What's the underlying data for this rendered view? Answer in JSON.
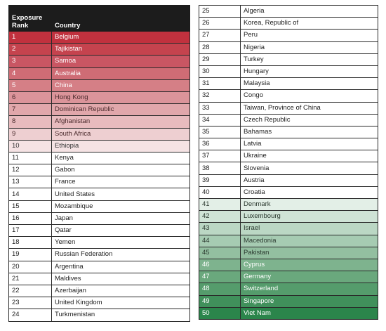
{
  "table_header": {
    "rank": "Exposure\nRank",
    "country": "Country"
  },
  "left_rows": [
    {
      "rank": "1",
      "country": "Belgium",
      "fill": "#c1313e",
      "text": "#ffffff"
    },
    {
      "rank": "2",
      "country": "Tajikistan",
      "fill": "#c5434e",
      "text": "#ffffff"
    },
    {
      "rank": "3",
      "country": "Samoa",
      "fill": "#c95663",
      "text": "#ffffff"
    },
    {
      "rank": "4",
      "country": "Australia",
      "fill": "#cf6c75",
      "text": "#ffffff"
    },
    {
      "rank": "5",
      "country": "China",
      "fill": "#d57f86",
      "text": "#ffffff"
    },
    {
      "rank": "6",
      "country": "Hong Kong",
      "fill": "#db949a",
      "text": "#4a2a2c"
    },
    {
      "rank": "7",
      "country": "Dominican Republic",
      "fill": "#e1a7ab",
      "text": "#4a2a2c"
    },
    {
      "rank": "8",
      "country": "Afghanistan",
      "fill": "#e8bbbe",
      "text": "#4a2a2c"
    },
    {
      "rank": "9",
      "country": "South Africa",
      "fill": "#eecfd1",
      "text": "#4a2a2c"
    },
    {
      "rank": "10",
      "country": "Ethiopia",
      "fill": "#f5e3e4",
      "text": "#333333"
    },
    {
      "rank": "11",
      "country": "Kenya",
      "fill": "#ffffff",
      "text": "#222222"
    },
    {
      "rank": "12",
      "country": "Gabon",
      "fill": "#ffffff",
      "text": "#222222"
    },
    {
      "rank": "13",
      "country": "France",
      "fill": "#ffffff",
      "text": "#222222"
    },
    {
      "rank": "14",
      "country": "United States",
      "fill": "#ffffff",
      "text": "#222222"
    },
    {
      "rank": "15",
      "country": "Mozambique",
      "fill": "#ffffff",
      "text": "#222222"
    },
    {
      "rank": "16",
      "country": "Japan",
      "fill": "#ffffff",
      "text": "#222222"
    },
    {
      "rank": "17",
      "country": "Qatar",
      "fill": "#ffffff",
      "text": "#222222"
    },
    {
      "rank": "18",
      "country": "Yemen",
      "fill": "#ffffff",
      "text": "#222222"
    },
    {
      "rank": "19",
      "country": "Russian Federation",
      "fill": "#ffffff",
      "text": "#222222"
    },
    {
      "rank": "20",
      "country": "Argentina",
      "fill": "#ffffff",
      "text": "#222222"
    },
    {
      "rank": "21",
      "country": "Maldives",
      "fill": "#ffffff",
      "text": "#222222"
    },
    {
      "rank": "22",
      "country": "Azerbaijan",
      "fill": "#ffffff",
      "text": "#222222"
    },
    {
      "rank": "23",
      "country": "United Kingdom",
      "fill": "#ffffff",
      "text": "#222222"
    },
    {
      "rank": "24",
      "country": "Turkmenistan",
      "fill": "#ffffff",
      "text": "#222222"
    }
  ],
  "right_rows": [
    {
      "rank": "25",
      "country": "Algeria",
      "fill": "#ffffff",
      "text": "#222222"
    },
    {
      "rank": "26",
      "country": "Korea, Republic of",
      "fill": "#ffffff",
      "text": "#222222"
    },
    {
      "rank": "27",
      "country": "Peru",
      "fill": "#ffffff",
      "text": "#222222"
    },
    {
      "rank": "28",
      "country": "Nigeria",
      "fill": "#ffffff",
      "text": "#222222"
    },
    {
      "rank": "29",
      "country": "Turkey",
      "fill": "#ffffff",
      "text": "#222222"
    },
    {
      "rank": "30",
      "country": "Hungary",
      "fill": "#ffffff",
      "text": "#222222"
    },
    {
      "rank": "31",
      "country": "Malaysia",
      "fill": "#ffffff",
      "text": "#222222"
    },
    {
      "rank": "32",
      "country": "Congo",
      "fill": "#ffffff",
      "text": "#222222"
    },
    {
      "rank": "33",
      "country": "Taiwan, Province of China",
      "fill": "#ffffff",
      "text": "#222222"
    },
    {
      "rank": "34",
      "country": "Czech Republic",
      "fill": "#ffffff",
      "text": "#222222"
    },
    {
      "rank": "35",
      "country": "Bahamas",
      "fill": "#ffffff",
      "text": "#222222"
    },
    {
      "rank": "36",
      "country": "Latvia",
      "fill": "#ffffff",
      "text": "#222222"
    },
    {
      "rank": "37",
      "country": "Ukraine",
      "fill": "#ffffff",
      "text": "#222222"
    },
    {
      "rank": "38",
      "country": "Slovenia",
      "fill": "#ffffff",
      "text": "#222222"
    },
    {
      "rank": "39",
      "country": "Austria",
      "fill": "#ffffff",
      "text": "#222222"
    },
    {
      "rank": "40",
      "country": "Croatia",
      "fill": "#ffffff",
      "text": "#222222"
    },
    {
      "rank": "41",
      "country": "Denmark",
      "fill": "#e3efe7",
      "text": "#2c3a30"
    },
    {
      "rank": "42",
      "country": "Luxembourg",
      "fill": "#cfe3d6",
      "text": "#2c3a30"
    },
    {
      "rank": "43",
      "country": "Israel",
      "fill": "#bbd7c4",
      "text": "#2c3a30"
    },
    {
      "rank": "44",
      "country": "Macedonia",
      "fill": "#a6cbb2",
      "text": "#2c3a30"
    },
    {
      "rank": "45",
      "country": "Pakistan",
      "fill": "#93bfa0",
      "text": "#2c3a30"
    },
    {
      "rank": "46",
      "country": "Cyprus",
      "fill": "#7eb38e",
      "text": "#ffffff"
    },
    {
      "rank": "47",
      "country": "Germany",
      "fill": "#6aa87d",
      "text": "#ffffff"
    },
    {
      "rank": "48",
      "country": "Switzerland",
      "fill": "#559c6c",
      "text": "#ffffff"
    },
    {
      "rank": "49",
      "country": "Singapore",
      "fill": "#40905b",
      "text": "#ffffff"
    },
    {
      "rank": "50",
      "country": "Viet Nam",
      "fill": "#2b854b",
      "text": "#ffffff"
    }
  ]
}
